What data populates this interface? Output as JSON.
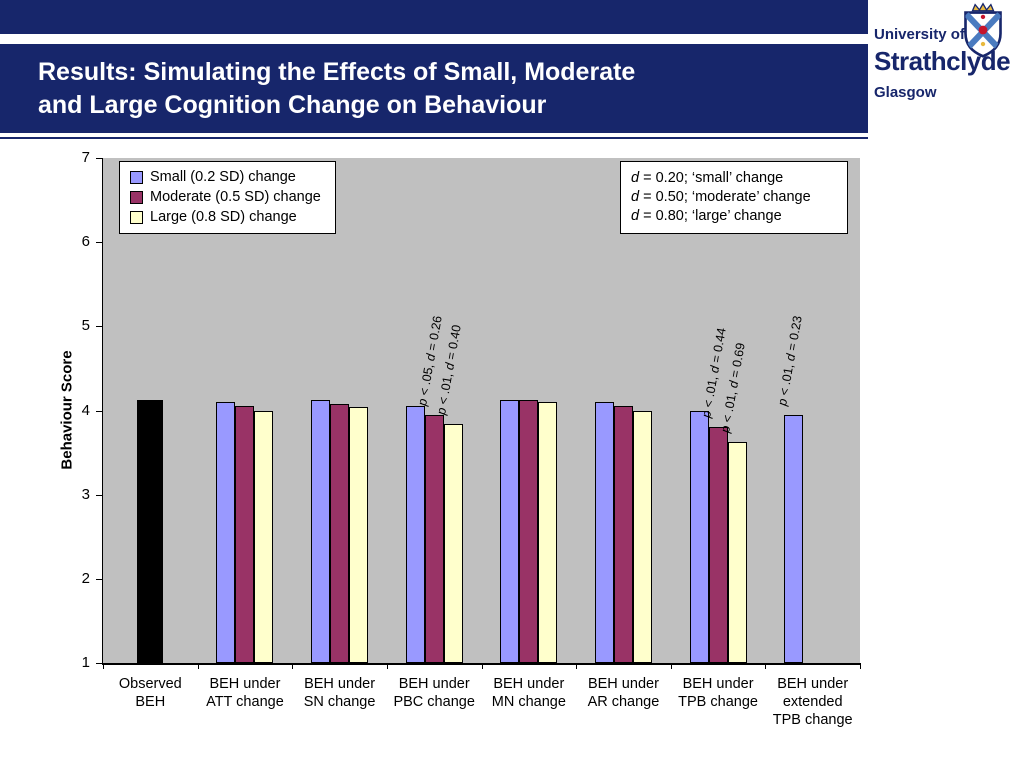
{
  "header": {
    "band_color": "#17266b",
    "title_lines": [
      "Results: Simulating the Effects of Small, Moderate",
      "and Large Cognition Change on Behaviour"
    ]
  },
  "logo": {
    "line1": "University of",
    "line2": "Strathclyde",
    "line3": "Glasgow"
  },
  "chart_data": {
    "type": "bar",
    "title": "",
    "xlabel": "",
    "ylabel": "Behaviour Score",
    "ylim": [
      1,
      7
    ],
    "yticks": [
      7,
      6,
      5,
      4,
      3,
      2,
      1
    ],
    "grid": false,
    "plot_bg": "#c0c0c0",
    "legend_position": "top-left",
    "series_colors": {
      "observed": "#000000",
      "small": "#9999ff",
      "moderate": "#993366",
      "large": "#ffffcc"
    },
    "legend": [
      {
        "series": "small",
        "label": "Small (0.2 SD) change"
      },
      {
        "series": "moderate",
        "label": "Moderate (0.5 SD) change"
      },
      {
        "series": "large",
        "label": "Large (0.8 SD) change"
      }
    ],
    "effect_note_lines": [
      "d = 0.20; ‘small’ change",
      "d = 0.50; ‘moderate’ change",
      "d = 0.80; ‘large’ change"
    ],
    "groups": [
      {
        "label_lines": [
          "Observed",
          "BEH"
        ],
        "slots": 1,
        "bars": [
          {
            "series": "observed",
            "slot": 0,
            "value": 4.13
          }
        ]
      },
      {
        "label_lines": [
          "BEH under",
          "ATT change"
        ],
        "slots": 3,
        "bars": [
          {
            "series": "small",
            "slot": 0,
            "value": 4.1
          },
          {
            "series": "moderate",
            "slot": 1,
            "value": 4.05
          },
          {
            "series": "large",
            "slot": 2,
            "value": 4.0
          }
        ]
      },
      {
        "label_lines": [
          "BEH under",
          "SN change"
        ],
        "slots": 3,
        "bars": [
          {
            "series": "small",
            "slot": 0,
            "value": 4.12
          },
          {
            "series": "moderate",
            "slot": 1,
            "value": 4.08
          },
          {
            "series": "large",
            "slot": 2,
            "value": 4.04
          }
        ]
      },
      {
        "label_lines": [
          "BEH under",
          "PBC change"
        ],
        "slots": 3,
        "bars": [
          {
            "series": "small",
            "slot": 0,
            "value": 4.05
          },
          {
            "series": "moderate",
            "slot": 1,
            "value": 3.95,
            "annotation": "p < .05, d = 0.26"
          },
          {
            "series": "large",
            "slot": 2,
            "value": 3.84,
            "annotation": "p < .01, d = 0.40"
          }
        ]
      },
      {
        "label_lines": [
          "BEH under",
          "MN change"
        ],
        "slots": 3,
        "bars": [
          {
            "series": "small",
            "slot": 0,
            "value": 4.12
          },
          {
            "series": "moderate",
            "slot": 1,
            "value": 4.12
          },
          {
            "series": "large",
            "slot": 2,
            "value": 4.1
          }
        ]
      },
      {
        "label_lines": [
          "BEH under",
          "AR change"
        ],
        "slots": 3,
        "bars": [
          {
            "series": "small",
            "slot": 0,
            "value": 4.1
          },
          {
            "series": "moderate",
            "slot": 1,
            "value": 4.05
          },
          {
            "series": "large",
            "slot": 2,
            "value": 4.0
          }
        ]
      },
      {
        "label_lines": [
          "BEH under",
          "TPB change"
        ],
        "slots": 3,
        "bars": [
          {
            "series": "small",
            "slot": 0,
            "value": 4.0
          },
          {
            "series": "moderate",
            "slot": 1,
            "value": 3.8,
            "annotation": "p < .01, d = 0.44"
          },
          {
            "series": "large",
            "slot": 2,
            "value": 3.62,
            "annotation": "p < .01, d = 0.69"
          }
        ]
      },
      {
        "label_lines": [
          "BEH under",
          "extended",
          "TPB change"
        ],
        "slots": 3,
        "bars": [
          {
            "series": "small",
            "slot": 0,
            "value": 3.95,
            "annotation": "p < .01, d = 0.23"
          }
        ]
      }
    ]
  }
}
